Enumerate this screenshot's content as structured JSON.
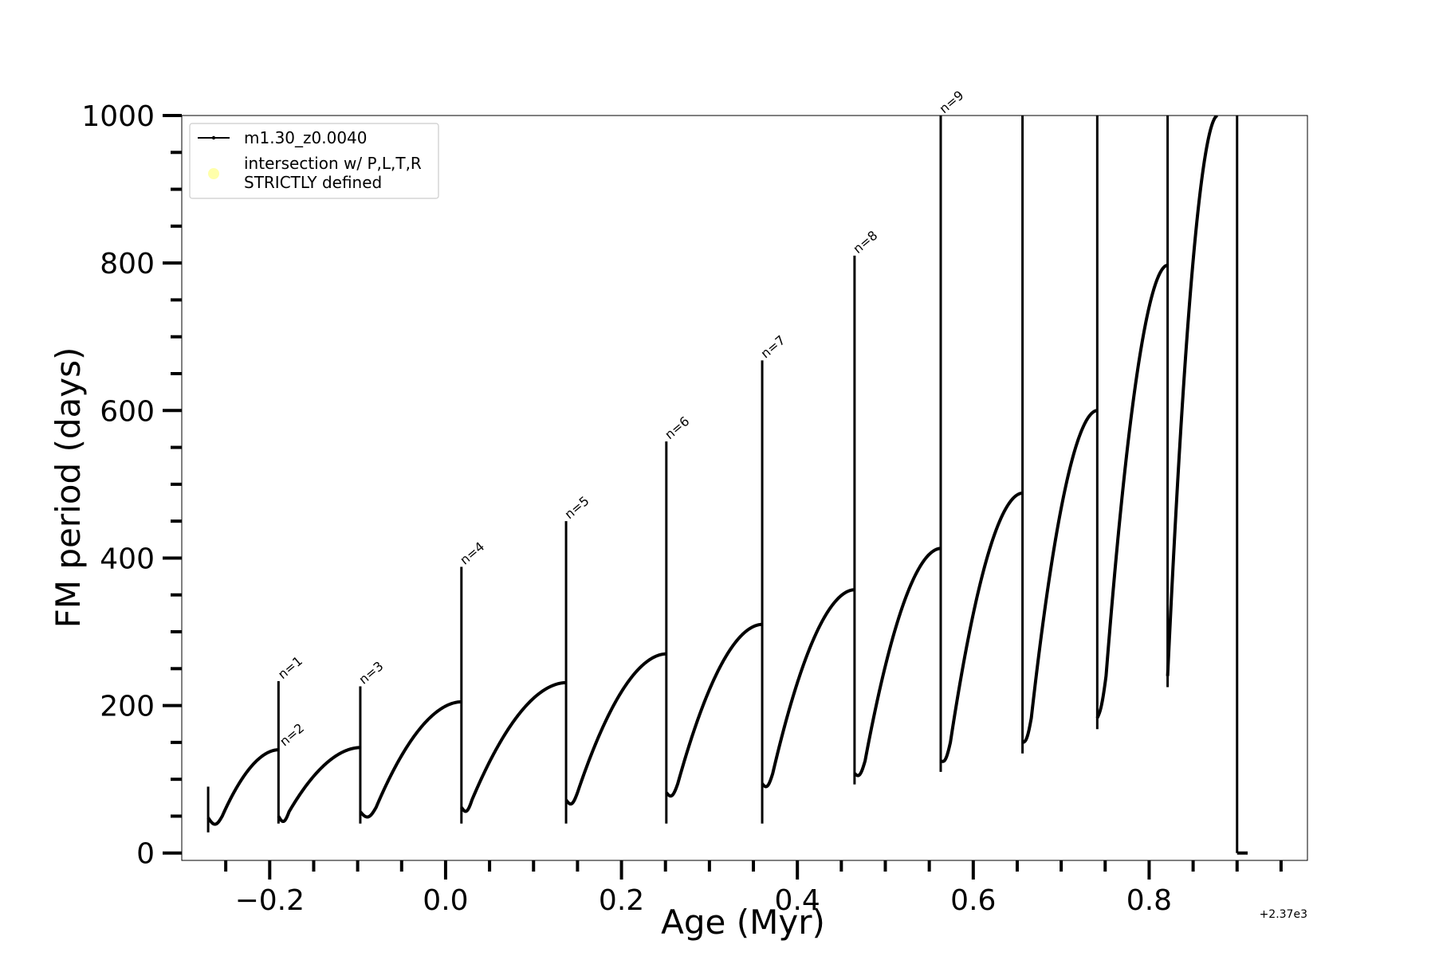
{
  "chart_data": {
    "type": "line",
    "title": "",
    "xlabel": "Age (Myr)",
    "ylabel": "FM period (days)",
    "x_offset_label": "+2.37e3",
    "xlim": [
      -0.3,
      0.98
    ],
    "ylim": [
      -10,
      1000
    ],
    "x_ticks": [
      -0.2,
      0.0,
      0.2,
      0.4,
      0.6,
      0.8
    ],
    "x_tick_labels": [
      "−0.2",
      "0.0",
      "0.2",
      "0.4",
      "0.6",
      "0.8"
    ],
    "y_ticks": [
      0,
      200,
      400,
      600,
      800,
      1000
    ],
    "y_tick_labels": [
      "0",
      "200",
      "400",
      "600",
      "800",
      "1000"
    ],
    "grid": false,
    "legend_position": "top-left",
    "legend": [
      {
        "label": "m1.30_z0.0040",
        "marker": "line-dot",
        "color": "#000000"
      },
      {
        "label_line1": "intersection w/ P,L,T,R",
        "label_line2": "STRICTLY defined",
        "marker": "circle",
        "color": "#ffffaa"
      }
    ],
    "series": [
      {
        "name": "m1.30_z0.0040",
        "color": "#000000",
        "cycles": [
          {
            "start": -0.27,
            "start_p": 48,
            "end": -0.19,
            "end_p": 140,
            "spike": 233,
            "min_p": 50,
            "min_dx": 0.016
          },
          {
            "start": -0.19,
            "start_p": 50,
            "end": -0.097,
            "end_p": 143,
            "spike": 226,
            "min_p": 56,
            "min_dx": 0.012
          },
          {
            "start": -0.097,
            "start_p": 56,
            "end": 0.018,
            "end_p": 205,
            "spike": 388,
            "min_p": 62,
            "min_dx": 0.018
          },
          {
            "start": 0.018,
            "start_p": 62,
            "end": 0.137,
            "end_p": 231,
            "spike": 450,
            "min_p": 72,
            "min_dx": 0.012
          },
          {
            "start": 0.137,
            "start_p": 72,
            "end": 0.251,
            "end_p": 270,
            "spike": 558,
            "min_p": 82,
            "min_dx": 0.013
          },
          {
            "start": 0.251,
            "start_p": 82,
            "end": 0.36,
            "end_p": 310,
            "spike": 668,
            "min_p": 94,
            "min_dx": 0.013
          },
          {
            "start": 0.36,
            "start_p": 94,
            "end": 0.465,
            "end_p": 357,
            "spike": 810,
            "min_p": 108,
            "min_dx": 0.012
          },
          {
            "start": 0.465,
            "start_p": 108,
            "end": 0.563,
            "end_p": 413,
            "spike": 1000,
            "min_p": 125,
            "min_dx": 0.012
          },
          {
            "start": 0.563,
            "start_p": 125,
            "end": 0.656,
            "end_p": 488,
            "spike": 1000,
            "min_p": 150,
            "min_dx": 0.011
          },
          {
            "start": 0.656,
            "start_p": 150,
            "end": 0.741,
            "end_p": 600,
            "spike": 1000,
            "min_p": 183,
            "min_dx": 0.01
          },
          {
            "start": 0.741,
            "start_p": 183,
            "end": 0.821,
            "end_p": 797,
            "spike": 1000,
            "min_p": 240,
            "min_dx": 0.01
          },
          {
            "start": 0.821,
            "start_p": 240,
            "end": 0.878,
            "end_p": 1000,
            "spike": 1000,
            "min_p": 240,
            "min_dx": 0.0
          }
        ],
        "final_drop": {
          "x": 0.9,
          "y_top": 1000,
          "y_bottom": 0,
          "tail_end_x": 0.912
        }
      }
    ],
    "annotations": [
      {
        "text": "n=1",
        "x": -0.188,
        "y": 233
      },
      {
        "text": "n=2",
        "x": -0.186,
        "y": 142
      },
      {
        "text": "n=3",
        "x": -0.096,
        "y": 226
      },
      {
        "text": "n=4",
        "x": 0.019,
        "y": 388
      },
      {
        "text": "n=5",
        "x": 0.138,
        "y": 450
      },
      {
        "text": "n=6",
        "x": 0.252,
        "y": 558
      },
      {
        "text": "n=7",
        "x": 0.361,
        "y": 668
      },
      {
        "text": "n=8",
        "x": 0.466,
        "y": 810
      },
      {
        "text": "n=9",
        "x": 0.564,
        "y": 1000
      }
    ]
  }
}
